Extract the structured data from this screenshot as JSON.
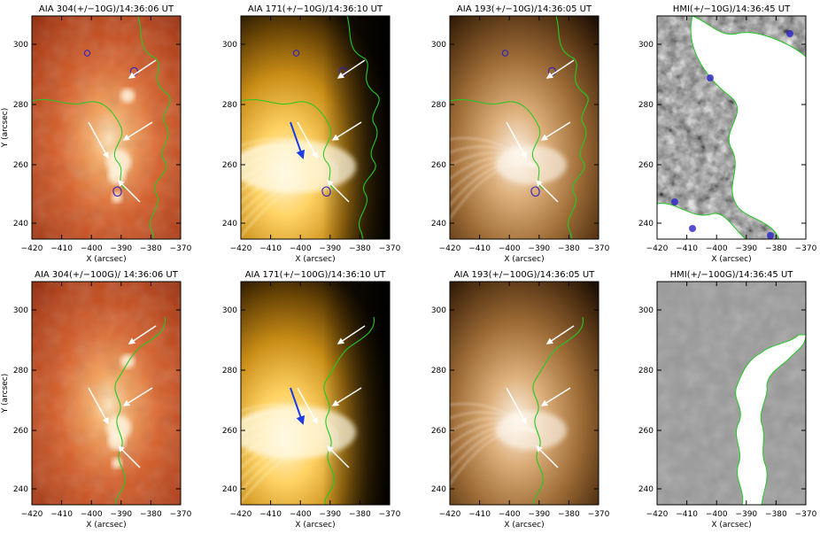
{
  "figure": {
    "panels": [
      {
        "title": "AIA 304(+/−10G)/14:36:06 UT",
        "style": "aia304",
        "ylabel": "Y (arcsec)",
        "xlabel": "X (arcsec)",
        "xticks": [
          "−420",
          "−410",
          "−400",
          "−390",
          "−380",
          "−370"
        ],
        "yticks": [
          "300",
          "280",
          "260",
          "240"
        ]
      },
      {
        "title": "AIA 171(+/−10G)/14:36:10 UT",
        "style": "aia171",
        "ylabel": "",
        "xlabel": "X (arcsec)",
        "xticks": [
          "−420",
          "−410",
          "−400",
          "−390",
          "−380",
          "−370"
        ],
        "yticks": [
          "300",
          "280",
          "260",
          "240"
        ]
      },
      {
        "title": "AIA 193(+/−10G)/14:36:05 UT",
        "style": "aia193",
        "ylabel": "",
        "xlabel": "X (arcsec)",
        "xticks": [
          "−420",
          "−410",
          "−400",
          "−390",
          "−380",
          "−370"
        ],
        "yticks": [
          "300",
          "280",
          "260",
          "240"
        ]
      },
      {
        "title": "HMI(+/−10G)/14:36:45 UT",
        "style": "hmi10",
        "ylabel": "",
        "xlabel": "X (arcsec)",
        "xticks": [
          "−420",
          "−410",
          "−400",
          "−390",
          "−380",
          "−370"
        ],
        "yticks": [
          "300",
          "280",
          "260",
          "240"
        ]
      },
      {
        "title": "AIA 304(+/−100G)/ 14:36:06 UT",
        "style": "aia304",
        "ylabel": "Y (arcsec)",
        "xlabel": "X (arcsec)",
        "xticks": [
          "−420",
          "−410",
          "−400",
          "−390",
          "−380",
          "−370"
        ],
        "yticks": [
          "300",
          "280",
          "260",
          "240"
        ]
      },
      {
        "title": "AIA 171(+/−100G)/14:36:10 UT",
        "style": "aia171",
        "ylabel": "",
        "xlabel": "X (arcsec)",
        "xticks": [
          "−420",
          "−410",
          "−400",
          "−390",
          "−380",
          "−370"
        ],
        "yticks": [
          "300",
          "280",
          "260",
          "240"
        ]
      },
      {
        "title": "AIA 193(+/−100G)/14:36:05 UT",
        "style": "aia193",
        "ylabel": "",
        "xlabel": "X (arcsec)",
        "xticks": [
          "−420",
          "−410",
          "−400",
          "−390",
          "−380",
          "−370"
        ],
        "yticks": [
          "300",
          "280",
          "260",
          "240"
        ]
      },
      {
        "title": "HMI(+/−100G)/14:36:45 UT",
        "style": "hmi100",
        "ylabel": "",
        "xlabel": "X (arcsec)",
        "xticks": [
          "−420",
          "−410",
          "−400",
          "−390",
          "−380",
          "−370"
        ],
        "yticks": [
          "300",
          "280",
          "260",
          "240"
        ]
      }
    ],
    "colors": {
      "contour_positive": "#22c922",
      "contour_negative": "#2b22c8",
      "arrow_white": "#ffffff",
      "arrow_blue": "#1c3ce8"
    }
  }
}
